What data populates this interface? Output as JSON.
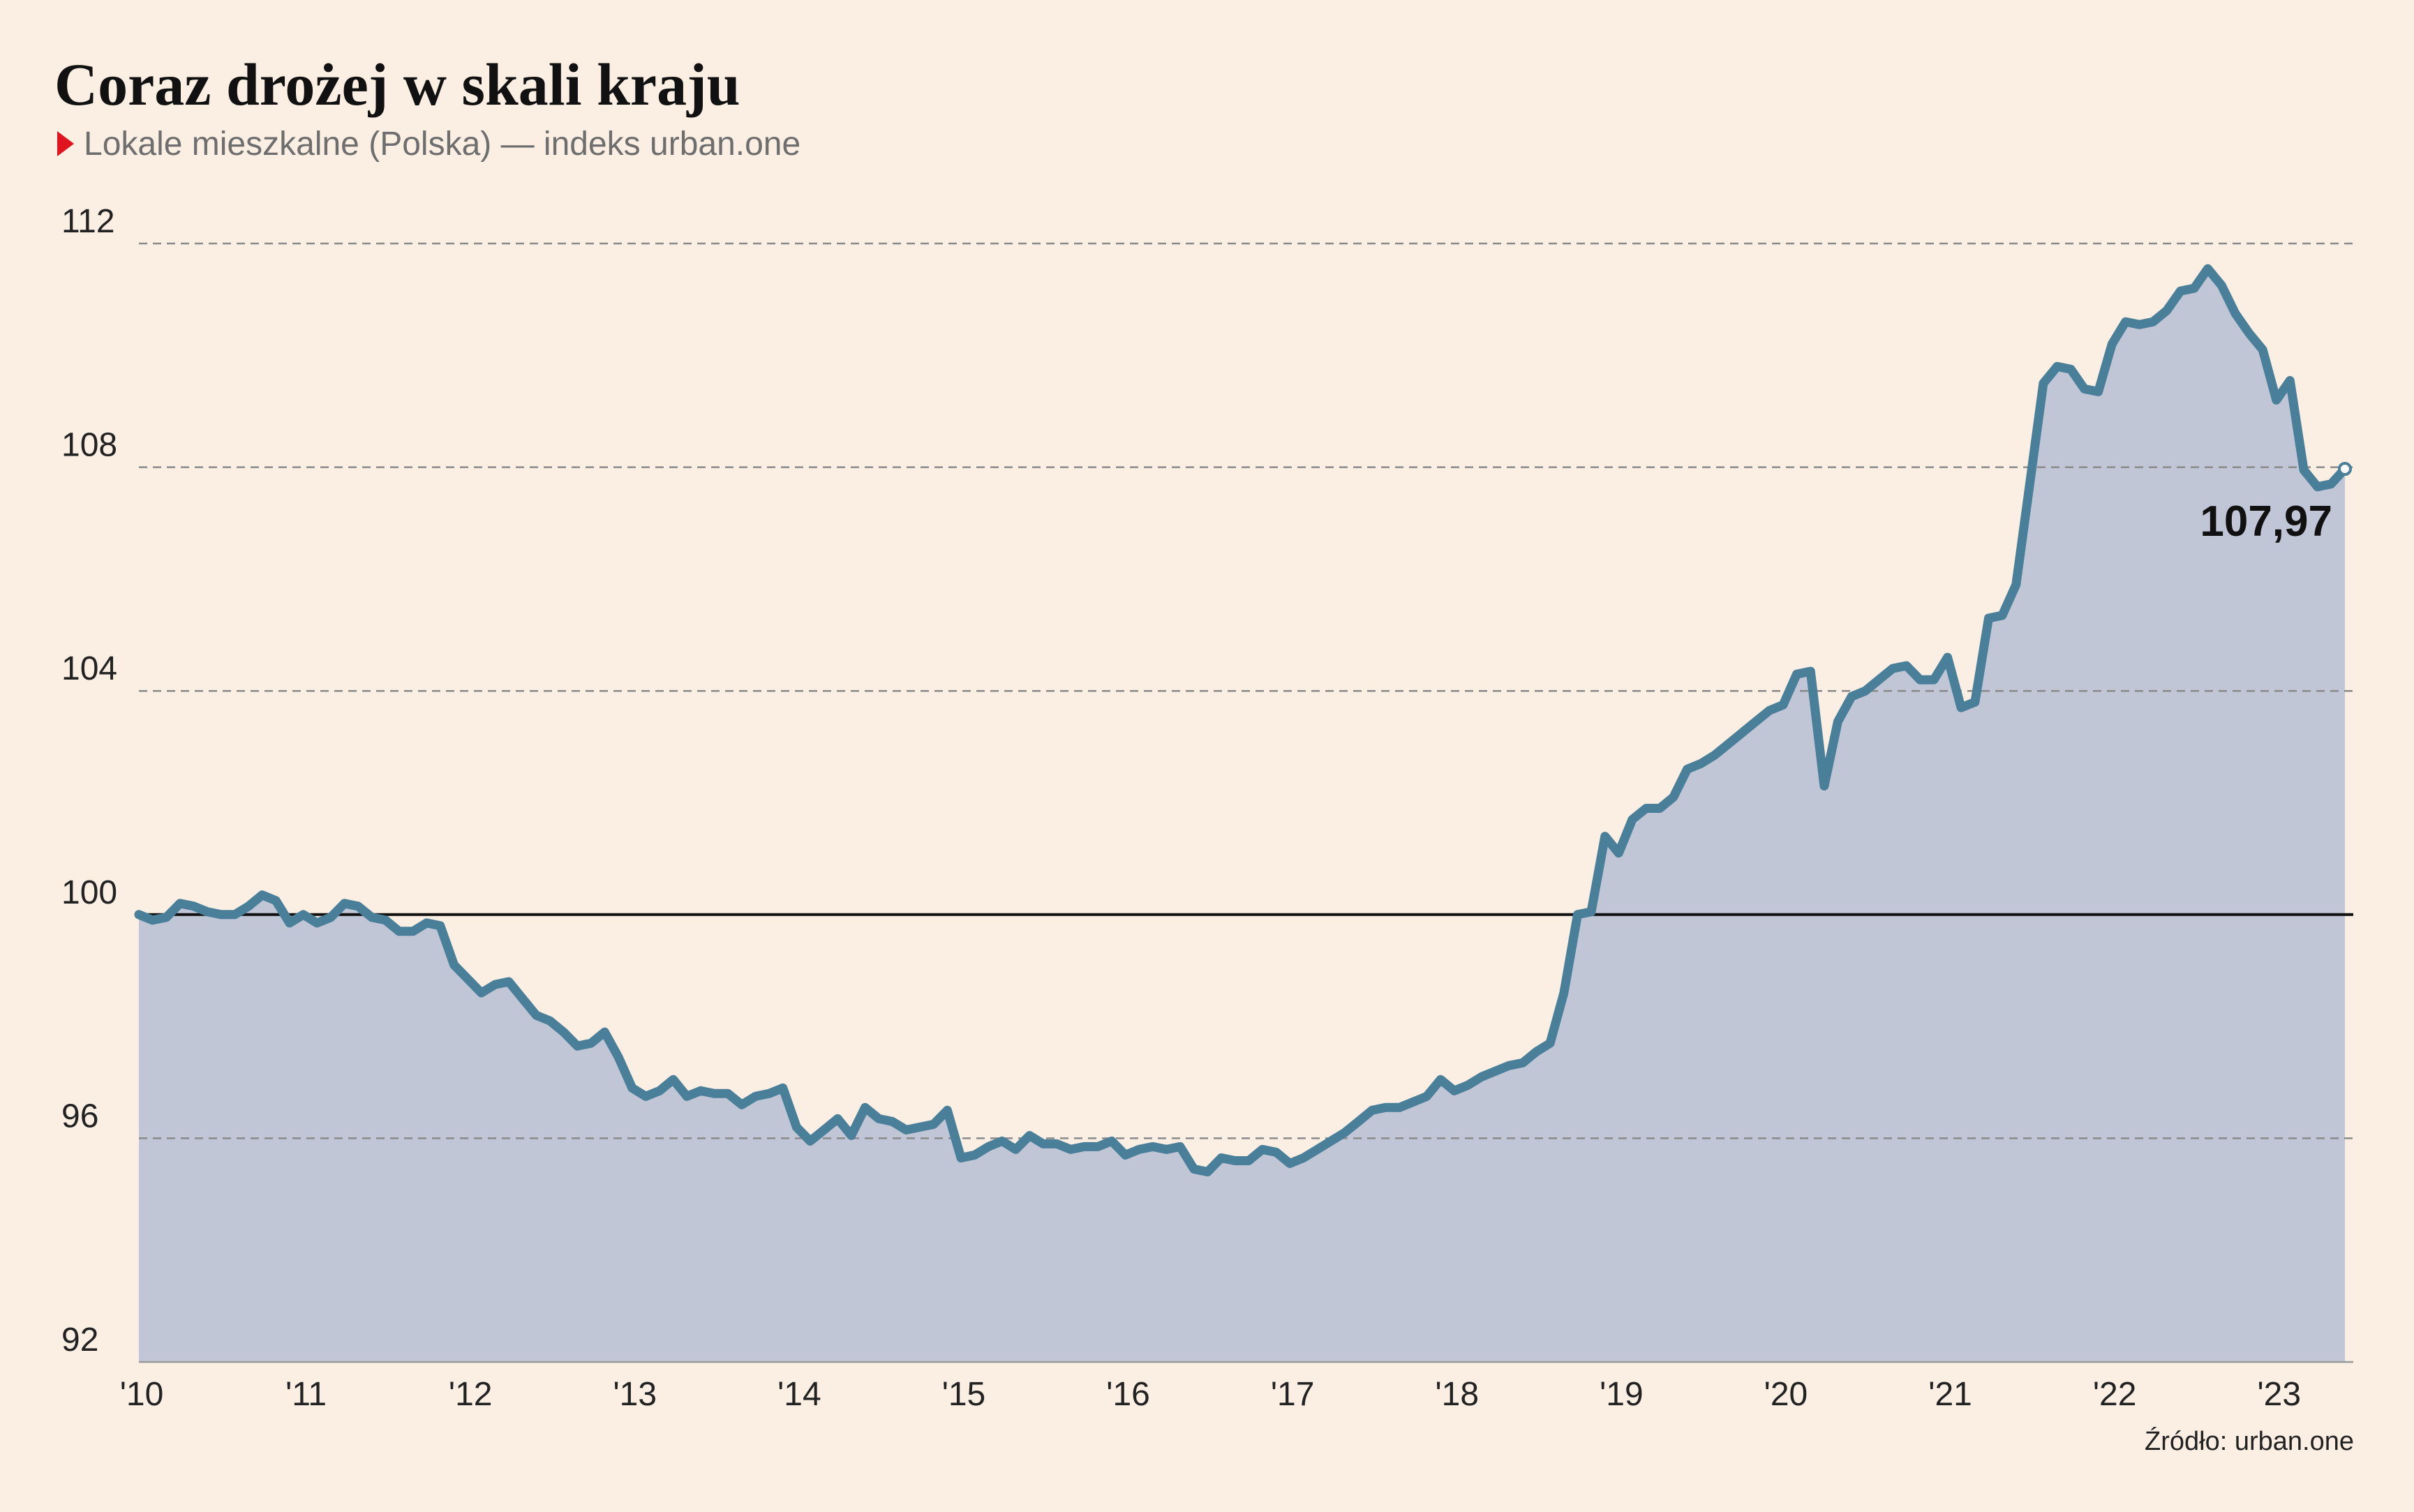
{
  "chart_data": {
    "type": "area-line",
    "title": "Coraz drożej w skali kraju",
    "subtitle": "Lokale mieszkalne (Polska) — indeks urban.one",
    "source": "Źródło: urban.one",
    "color": "#4a7f9a",
    "fill": "#c1c6d6",
    "grid": true,
    "baseline": 100,
    "xlim": [
      2010,
      2023.417
    ],
    "ylim": [
      92,
      112
    ],
    "yticks": [
      92,
      96,
      100,
      104,
      108,
      112
    ],
    "xticks": [
      {
        "value": 2010,
        "label": "'10"
      },
      {
        "value": 2011,
        "label": "'11"
      },
      {
        "value": 2012,
        "label": "'12"
      },
      {
        "value": 2013,
        "label": "'13"
      },
      {
        "value": 2014,
        "label": "'14"
      },
      {
        "value": 2015,
        "label": "'15"
      },
      {
        "value": 2016,
        "label": "'16"
      },
      {
        "value": 2017,
        "label": "'17"
      },
      {
        "value": 2018,
        "label": "'18"
      },
      {
        "value": 2019,
        "label": "'19"
      },
      {
        "value": 2020,
        "label": "'20"
      },
      {
        "value": 2021,
        "label": "'21"
      },
      {
        "value": 2022,
        "label": "'22"
      },
      {
        "value": 2023,
        "label": "'23"
      }
    ],
    "x": [
      2010,
      2010.083,
      2010.167,
      2010.25,
      2010.333,
      2010.417,
      2010.5,
      2010.583,
      2010.667,
      2010.75,
      2010.833,
      2010.917,
      2011,
      2011.083,
      2011.167,
      2011.25,
      2011.333,
      2011.417,
      2011.5,
      2011.583,
      2011.667,
      2011.75,
      2011.833,
      2011.917,
      2012,
      2012.083,
      2012.167,
      2012.25,
      2012.333,
      2012.417,
      2012.5,
      2012.583,
      2012.667,
      2012.75,
      2012.833,
      2012.917,
      2013,
      2013.083,
      2013.167,
      2013.25,
      2013.333,
      2013.417,
      2013.5,
      2013.583,
      2013.667,
      2013.75,
      2013.833,
      2013.917,
      2014,
      2014.083,
      2014.167,
      2014.25,
      2014.333,
      2014.417,
      2014.5,
      2014.583,
      2014.667,
      2014.75,
      2014.833,
      2014.917,
      2015,
      2015.083,
      2015.167,
      2015.25,
      2015.333,
      2015.417,
      2015.5,
      2015.583,
      2015.667,
      2015.75,
      2015.833,
      2015.917,
      2016,
      2016.083,
      2016.167,
      2016.25,
      2016.333,
      2016.417,
      2016.5,
      2016.583,
      2016.667,
      2016.75,
      2016.833,
      2016.917,
      2017,
      2017.083,
      2017.167,
      2017.25,
      2017.333,
      2017.417,
      2017.5,
      2017.583,
      2017.667,
      2017.75,
      2017.833,
      2017.917,
      2018,
      2018.083,
      2018.167,
      2018.25,
      2018.333,
      2018.417,
      2018.5,
      2018.583,
      2018.667,
      2018.75,
      2018.833,
      2018.917,
      2019,
      2019.083,
      2019.167,
      2019.25,
      2019.333,
      2019.417,
      2019.5,
      2019.583,
      2019.667,
      2019.75,
      2019.833,
      2019.917,
      2020,
      2020.083,
      2020.167,
      2020.25,
      2020.333,
      2020.417,
      2020.5,
      2020.583,
      2020.667,
      2020.75,
      2020.833,
      2020.917,
      2021,
      2021.083,
      2021.167,
      2021.25,
      2021.333,
      2021.417,
      2021.5,
      2021.583,
      2021.667,
      2021.75,
      2021.833,
      2021.917,
      2022,
      2022.083,
      2022.167,
      2022.25,
      2022.333,
      2022.417,
      2022.5,
      2022.583,
      2022.667,
      2022.75,
      2022.833,
      2022.917,
      2023,
      2023.083,
      2023.167,
      2023.25,
      2023.333,
      2023.417
    ],
    "values": [
      100.0,
      99.9,
      99.95,
      100.2,
      100.15,
      100.05,
      100.0,
      100.0,
      100.15,
      100.35,
      100.25,
      99.85,
      100.0,
      99.85,
      99.95,
      100.2,
      100.15,
      99.95,
      99.9,
      99.7,
      99.7,
      99.85,
      99.8,
      99.1,
      98.85,
      98.6,
      98.75,
      98.8,
      98.5,
      98.2,
      98.1,
      97.9,
      97.65,
      97.7,
      97.9,
      97.45,
      96.9,
      96.75,
      96.85,
      97.05,
      96.75,
      96.85,
      96.8,
      96.8,
      96.6,
      96.75,
      96.8,
      96.9,
      96.2,
      95.95,
      96.15,
      96.35,
      96.05,
      96.55,
      96.35,
      96.3,
      96.15,
      96.2,
      96.25,
      96.5,
      95.65,
      95.7,
      95.85,
      95.95,
      95.8,
      96.05,
      95.9,
      95.9,
      95.8,
      95.85,
      95.85,
      95.95,
      95.7,
      95.8,
      95.85,
      95.8,
      95.85,
      95.45,
      95.4,
      95.65,
      95.6,
      95.6,
      95.8,
      95.75,
      95.55,
      95.65,
      95.8,
      95.95,
      96.1,
      96.3,
      96.5,
      96.55,
      96.55,
      96.65,
      96.75,
      97.05,
      96.85,
      96.95,
      97.1,
      97.2,
      97.3,
      97.35,
      97.55,
      97.7,
      98.6,
      100.0,
      100.05,
      101.4,
      101.1,
      101.7,
      101.9,
      101.9,
      102.1,
      102.6,
      102.7,
      102.85,
      103.05,
      103.25,
      103.45,
      103.65,
      103.75,
      104.3,
      104.35,
      102.3,
      103.45,
      103.9,
      104.0,
      104.2,
      104.4,
      104.45,
      104.2,
      104.2,
      104.6,
      103.7,
      103.8,
      105.3,
      105.35,
      105.9,
      107.7,
      109.5,
      109.8,
      109.75,
      109.4,
      109.35,
      110.2,
      110.6,
      110.55,
      110.6,
      110.8,
      111.15,
      111.2,
      111.55,
      111.25,
      110.75,
      110.4,
      110.1,
      109.2,
      109.55,
      107.95,
      107.65,
      107.7,
      107.97
    ],
    "value_labels": [
      null,
      null,
      null,
      null,
      null,
      null,
      null,
      null,
      null,
      null,
      null,
      null,
      null,
      null,
      null,
      null,
      null,
      null,
      null,
      null,
      null,
      null,
      null,
      null,
      null,
      null,
      null,
      null,
      null,
      null,
      null,
      null,
      null,
      null,
      null,
      null,
      null,
      null,
      null,
      null,
      null,
      null,
      null,
      null,
      null,
      null,
      null,
      null,
      null,
      null,
      null,
      null,
      null,
      null,
      null,
      null,
      null,
      null,
      null,
      null,
      null,
      null,
      null,
      null,
      null,
      null,
      null,
      null,
      null,
      null,
      null,
      null,
      null,
      null,
      null,
      null,
      null,
      null,
      null,
      null,
      null,
      null,
      null,
      null,
      null,
      null,
      null,
      null,
      null,
      null,
      null,
      null,
      null,
      null,
      null,
      null,
      null,
      null,
      null,
      null,
      null,
      null,
      null,
      null,
      null,
      null,
      null,
      null,
      null,
      null,
      null,
      null,
      null,
      null,
      null,
      null,
      null,
      null,
      null,
      null,
      null,
      null,
      null,
      null,
      null,
      null,
      null,
      null,
      null,
      null,
      null,
      null,
      null,
      null,
      null,
      null,
      null,
      null,
      null,
      null,
      null,
      null,
      null,
      null,
      null,
      null,
      null,
      null,
      null,
      null,
      null,
      null,
      null,
      null,
      null,
      null,
      null,
      null,
      null,
      null,
      null,
      "107,97"
    ]
  }
}
